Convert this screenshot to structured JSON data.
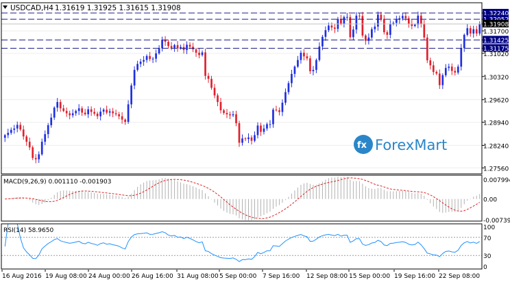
{
  "header": {
    "symbol_timeframe": "USDCAD,H4",
    "ohlc": "1.31619 1.31925 1.31615 1.31908"
  },
  "logo": {
    "text": "ForexMart",
    "mark": "fx-arrows"
  },
  "colors": {
    "bull": "#1f2fe0",
    "bear": "#e0202e",
    "level_line": "#1a1a8a",
    "current_price_bg": "#000000",
    "level_label_bg": "#000080",
    "macd_hist": "#b0b0b0",
    "macd_signal": "#e02020",
    "rsi_line": "#1e90ff",
    "rsi_levels": "#9a9a9a",
    "logo_blue": "#2a86c8"
  },
  "chart_data": [
    {
      "type": "candlestick",
      "name": "price",
      "x_labels": [
        "16 Aug 2016",
        "19 Aug 08:00",
        "24 Aug 00:00",
        "26 Aug 16:00",
        "31 Aug 08:00",
        "5 Sep 00:00",
        "7 Sep 16:00",
        "12 Sep 08:00",
        "15 Sep 00:00",
        "19 Sep 16:00",
        "22 Sep 08:00"
      ],
      "y_ticks": [
        "1.32240",
        "1.32052",
        "1.31908",
        "1.31700",
        "1.31425",
        "1.31175",
        "1.31020",
        "1.30320",
        "1.29620",
        "1.28940",
        "1.28240",
        "1.27560"
      ],
      "ylim": [
        1.2738,
        1.3255
      ],
      "horizontal_levels": [
        1.3224,
        1.32052,
        1.31425,
        1.31175
      ],
      "level_labels": [
        "1.32240",
        "1.32052",
        "1.31425",
        "1.31175"
      ],
      "current_price": 1.31908,
      "current_price_label": "1.31908",
      "closes": [
        1.2855,
        1.2862,
        1.2871,
        1.2875,
        1.2886,
        1.2872,
        1.2851,
        1.2835,
        1.2818,
        1.2786,
        1.2782,
        1.2797,
        1.2835,
        1.2858,
        1.2885,
        1.2908,
        1.2938,
        1.2955,
        1.2936,
        1.2928,
        1.2921,
        1.2915,
        1.2921,
        1.2928,
        1.2936,
        1.2923,
        1.2918,
        1.2933,
        1.2925,
        1.292,
        1.2912,
        1.2926,
        1.2932,
        1.2923,
        1.2927,
        1.2921,
        1.2918,
        1.2912,
        1.2902,
        1.2895,
        1.2948,
        1.3005,
        1.3052,
        1.307,
        1.3077,
        1.3082,
        1.3094,
        1.3085,
        1.3086,
        1.3102,
        1.3118,
        1.3143,
        1.3137,
        1.3124,
        1.3119,
        1.3127,
        1.3117,
        1.3121,
        1.3112,
        1.3128,
        1.3122,
        1.3114,
        1.3104,
        1.3097,
        1.3105,
        1.3034,
        1.3025,
        1.2998,
        1.2975,
        1.2955,
        1.293,
        1.2922,
        1.2918,
        1.2915,
        1.2918,
        1.2891,
        1.2832,
        1.2845,
        1.2843,
        1.2848,
        1.2838,
        1.2855,
        1.2884,
        1.2865,
        1.2875,
        1.2888,
        1.2888,
        1.2932,
        1.293,
        1.2925,
        1.2953,
        1.2985,
        1.3012,
        1.304,
        1.3062,
        1.3082,
        1.3104,
        1.3093,
        1.3087,
        1.3048,
        1.3052,
        1.3082,
        1.3123,
        1.3152,
        1.3172,
        1.3186,
        1.318,
        1.3176,
        1.3206,
        1.3192,
        1.3212,
        1.3212,
        1.3151,
        1.3174,
        1.3216,
        1.3215,
        1.3156,
        1.314,
        1.315,
        1.3175,
        1.3183,
        1.3219,
        1.3206,
        1.3166,
        1.3158,
        1.319,
        1.3194,
        1.3204,
        1.3208,
        1.3215,
        1.3208,
        1.3192,
        1.3185,
        1.3189,
        1.3216,
        1.3192,
        1.315,
        1.3081,
        1.3066,
        1.3046,
        1.3041,
        1.3006,
        1.3036,
        1.3058,
        1.3062,
        1.3049,
        1.3044,
        1.3062,
        1.3118,
        1.3158,
        1.3178,
        1.3162,
        1.3175,
        1.3162,
        1.3191
      ]
    },
    {
      "type": "bar",
      "name": "MACD(9,26,9)",
      "label": "MACD(9,26,9) 0.001110 -0.001903",
      "y_ticks": [
        "0.007994",
        "0.00",
        "-0.007393"
      ],
      "ylim": [
        -0.0078,
        0.0084
      ],
      "source": "closes",
      "fast": 9,
      "slow": 26,
      "signal": 9
    },
    {
      "type": "line",
      "name": "RSI(14)",
      "label": "RSI(14) 58.9650",
      "y_ticks": [
        "100",
        "70",
        "30",
        "0"
      ],
      "ylim": [
        0,
        100
      ],
      "levels": [
        70,
        30
      ],
      "source": "closes",
      "period": 14
    }
  ]
}
